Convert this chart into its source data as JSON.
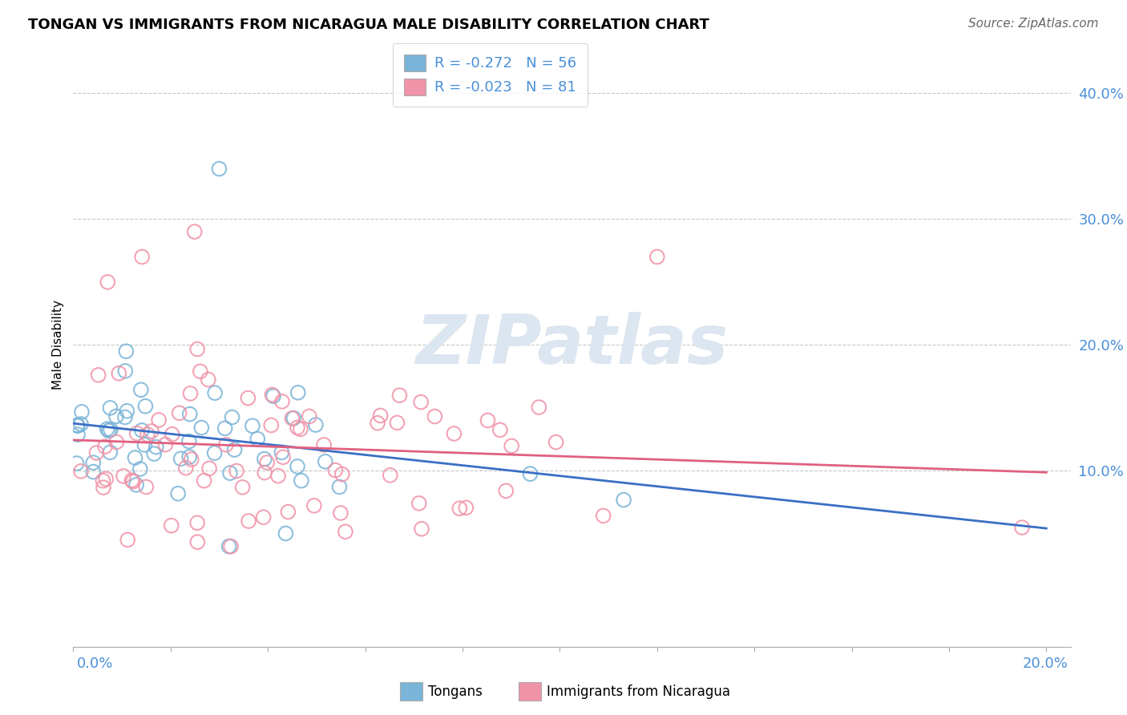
{
  "title": "TONGAN VS IMMIGRANTS FROM NICARAGUA MALE DISABILITY CORRELATION CHART",
  "source": "Source: ZipAtlas.com",
  "ylabel": "Male Disability",
  "y_tick_labels": [
    "10.0%",
    "20.0%",
    "30.0%",
    "40.0%"
  ],
  "y_tick_values": [
    0.1,
    0.2,
    0.3,
    0.4
  ],
  "xlim": [
    0.0,
    0.205
  ],
  "ylim": [
    -0.04,
    0.44
  ],
  "tongans_color": "#7ab4d8",
  "nicaragua_color": "#f093a8",
  "blue_line_color": "#3a6fc4",
  "pink_line_color": "#e06080",
  "grid_color": "#c8c8c8",
  "legend_label_blue": "R = -0.272   N = 56",
  "legend_label_pink": "R = -0.023   N = 81",
  "label_color": "#4a90d9",
  "watermark_text": "ZIPatlas",
  "watermark_color": "#dce6f0",
  "tongans_N": 56,
  "nicaragua_N": 81,
  "tongans_R": -0.272,
  "nicaragua_R": -0.023,
  "blue_intercept": 0.135,
  "blue_slope": -0.38,
  "pink_intercept": 0.115,
  "pink_slope": -0.02
}
